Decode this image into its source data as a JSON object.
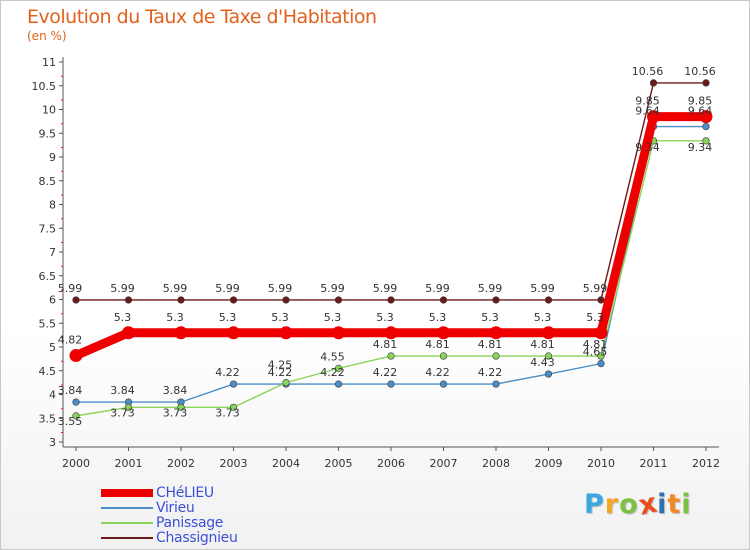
{
  "colors": {
    "title": "#e2611c",
    "legend_text": "#3c50d8",
    "axis": "#555555",
    "grid": "#e4e4e4"
  },
  "chart_data": {
    "type": "line",
    "title": "Evolution du Taux de Taxe d'Habitation",
    "subtitle": "(en %)",
    "xlabel": "",
    "ylabel": "",
    "categories": [
      "2000",
      "2001",
      "2002",
      "2003",
      "2004",
      "2005",
      "2006",
      "2007",
      "2008",
      "2009",
      "2010",
      "2011",
      "2012"
    ],
    "yticks": [
      "3",
      "3.5",
      "4",
      "4.5",
      "5",
      "5.5",
      "6",
      "6.5",
      "7",
      "7.5",
      "8",
      "8.5",
      "9",
      "9.5",
      "10",
      "10.5",
      "11"
    ],
    "ylim": [
      3,
      11
    ],
    "grid": false,
    "legend_position": "bottom-left",
    "series": [
      {
        "name": "Chassignieu",
        "color": "#6b1a1a",
        "values": [
          5.99,
          5.99,
          5.99,
          5.99,
          5.99,
          5.99,
          5.99,
          5.99,
          5.99,
          5.99,
          5.99,
          10.56,
          10.56
        ],
        "labels": [
          "5.99",
          "5.99",
          "5.99",
          "5.99",
          "5.99",
          "5.99",
          "5.99",
          "5.99",
          "5.99",
          "5.99",
          "5.99",
          "10.56",
          "10.56"
        ]
      },
      {
        "name": "Virieu",
        "color": "#4a8ec8",
        "values": [
          3.84,
          3.84,
          3.84,
          4.22,
          4.22,
          4.22,
          4.22,
          4.22,
          4.22,
          4.43,
          4.65,
          9.64,
          9.64
        ],
        "labels": [
          "3.84",
          "3.84",
          "3.84",
          "4.22",
          "4.22",
          "4.22",
          "4.22",
          "4.22",
          "4.22",
          "4.43",
          "4.65",
          "9.64",
          "9.64"
        ]
      },
      {
        "name": "Panissage",
        "color": "#8bd45a",
        "values": [
          3.55,
          3.73,
          3.73,
          3.73,
          4.25,
          4.55,
          4.81,
          4.81,
          4.81,
          4.81,
          4.81,
          9.34,
          9.34
        ],
        "labels": [
          "3.55",
          "3.73",
          "3.73",
          "3.73",
          "4.25",
          "4.55",
          "4.81",
          "4.81",
          "4.81",
          "4.81",
          "4.81",
          "9.34",
          "9.34"
        ]
      },
      {
        "name": "CHéLIEU",
        "color": "#ee0000",
        "values": [
          4.82,
          5.3,
          5.3,
          5.3,
          5.3,
          5.3,
          5.3,
          5.3,
          5.3,
          5.3,
          5.3,
          9.85,
          9.85
        ],
        "labels": [
          "4.82",
          "5.3",
          "5.3",
          "5.3",
          "5.3",
          "5.3",
          "5.3",
          "5.3",
          "5.3",
          "5.3",
          "5.3",
          "9.85",
          "9.85"
        ]
      }
    ],
    "legend": [
      "CHéLIEU",
      "Virieu",
      "Panissage",
      "Chassignieu"
    ]
  },
  "logo": {
    "letters": [
      "P",
      "r",
      "o",
      "x",
      "i",
      "t",
      "i"
    ],
    "colors": [
      "#3ba7e0",
      "#f5a623",
      "#7cc142",
      "#e94e1b",
      "#2e6fb5",
      "#f08a24",
      "#7cc142"
    ]
  }
}
